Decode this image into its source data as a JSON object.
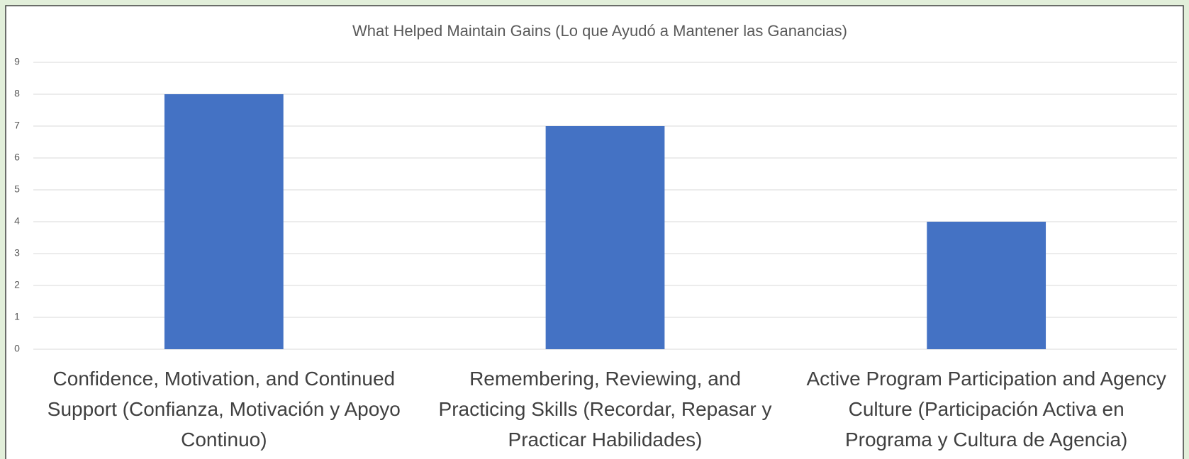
{
  "chart_data": {
    "type": "bar",
    "title": "What Helped Maintain Gains (Lo que Ayudó a Mantener las Ganancias)",
    "categories": [
      "Confidence, Motivation, and Continued Support (Confianza, Motivación y Apoyo Continuo)",
      "Remembering, Reviewing, and Practicing Skills (Recordar, Repasar y Practicar Habilidades)",
      "Active Program Participation and Agency Culture (Participación Activa en Programa y Cultura de Agencia)"
    ],
    "values": [
      8,
      7,
      4
    ],
    "color": "#4472c4",
    "ylim": [
      0,
      9
    ],
    "yticks": [
      0,
      1,
      2,
      3,
      4,
      5,
      6,
      7,
      8,
      9
    ],
    "grid": true
  }
}
